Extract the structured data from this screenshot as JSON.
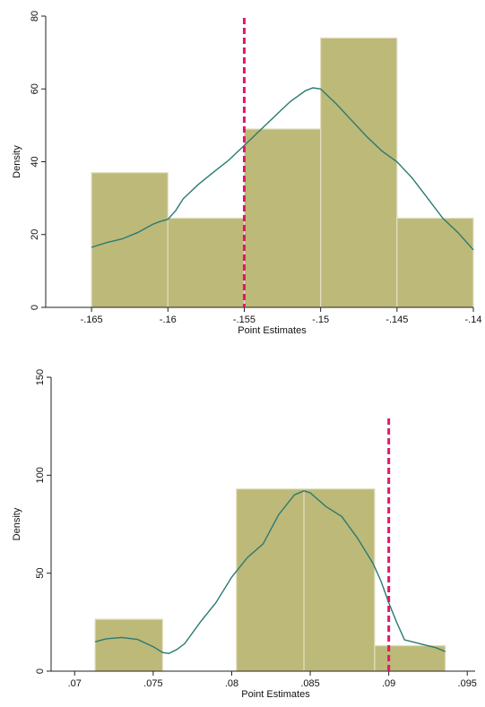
{
  "chart_data": [
    {
      "type": "bar",
      "subtype": "histogram-with-kernel-density",
      "xlabel": "Point Estimates",
      "ylabel": "Density",
      "xlim": [
        -0.168,
        -0.14
      ],
      "ylim": [
        0,
        80
      ],
      "xticks": [
        {
          "value": -0.165,
          "label": "-.165"
        },
        {
          "value": -0.16,
          "label": "-.16"
        },
        {
          "value": -0.155,
          "label": "-.155"
        },
        {
          "value": -0.15,
          "label": "-.15"
        },
        {
          "value": -0.145,
          "label": "-.145"
        },
        {
          "value": -0.14,
          "label": "-.14"
        }
      ],
      "yticks": [
        {
          "value": 0,
          "label": "0"
        },
        {
          "value": 20,
          "label": "20"
        },
        {
          "value": 40,
          "label": "40"
        },
        {
          "value": 60,
          "label": "60"
        },
        {
          "value": 80,
          "label": "80"
        }
      ],
      "bins": [
        {
          "x0": -0.165,
          "x1": -0.16,
          "value": 37
        },
        {
          "x0": -0.16,
          "x1": -0.155,
          "value": 24.5
        },
        {
          "x0": -0.155,
          "x1": -0.15,
          "value": 49
        },
        {
          "x0": -0.15,
          "x1": -0.145,
          "value": 74
        },
        {
          "x0": -0.145,
          "x1": -0.14,
          "value": 24.5
        }
      ],
      "density": {
        "x": [
          -0.165,
          -0.164,
          -0.163,
          -0.162,
          -0.161,
          -0.1605,
          -0.16,
          -0.1595,
          -0.159,
          -0.158,
          -0.157,
          -0.156,
          -0.155,
          -0.154,
          -0.153,
          -0.152,
          -0.151,
          -0.1505,
          -0.15,
          -0.149,
          -0.148,
          -0.147,
          -0.146,
          -0.145,
          -0.144,
          -0.143,
          -0.142,
          -0.141,
          -0.14
        ],
        "y": [
          16.5,
          17.8,
          18.8,
          20.5,
          22.8,
          23.6,
          24.2,
          26.5,
          29.8,
          33.8,
          37.2,
          40.5,
          44.5,
          48.5,
          52.5,
          56.5,
          59.5,
          60.3,
          60.0,
          56.0,
          51.5,
          47.0,
          43.0,
          40.0,
          35.5,
          30.0,
          24.5,
          20.5,
          15.8
        ]
      },
      "reference_line": -0.155,
      "colors": {
        "bars": "#bdb978",
        "bar_edge": "#e2dfc2",
        "density": "#2a7a73",
        "reference": "#e0186b"
      }
    },
    {
      "type": "bar",
      "subtype": "histogram-with-kernel-density",
      "xlabel": "Point Estimates",
      "ylabel": "Density",
      "xlim": [
        0.0685,
        0.0955
      ],
      "ylim": [
        0,
        150
      ],
      "xticks": [
        {
          "value": 0.07,
          "label": ".07"
        },
        {
          "value": 0.075,
          "label": ".075"
        },
        {
          "value": 0.08,
          "label": ".08"
        },
        {
          "value": 0.085,
          "label": ".085"
        },
        {
          "value": 0.09,
          "label": ".09"
        },
        {
          "value": 0.095,
          "label": ".095"
        }
      ],
      "yticks": [
        {
          "value": 0,
          "label": "0"
        },
        {
          "value": 50,
          "label": "50"
        },
        {
          "value": 100,
          "label": "100"
        },
        {
          "value": 150,
          "label": "150"
        }
      ],
      "bins": [
        {
          "x0": 0.0713,
          "x1": 0.0756,
          "value": 26.5
        },
        {
          "x0": 0.0756,
          "x1": 0.0803,
          "value": 0
        },
        {
          "x0": 0.0803,
          "x1": 0.0846,
          "value": 93
        },
        {
          "x0": 0.0846,
          "x1": 0.0891,
          "value": 93
        },
        {
          "x0": 0.0891,
          "x1": 0.0936,
          "value": 13
        }
      ],
      "density": {
        "x": [
          0.0713,
          0.072,
          0.073,
          0.074,
          0.075,
          0.0756,
          0.076,
          0.0765,
          0.077,
          0.078,
          0.079,
          0.08,
          0.081,
          0.082,
          0.083,
          0.084,
          0.0846,
          0.085,
          0.086,
          0.087,
          0.088,
          0.089,
          0.0895,
          0.09,
          0.0905,
          0.091,
          0.092,
          0.093,
          0.0936
        ],
        "y": [
          15,
          16.5,
          17.2,
          16.2,
          12.5,
          9.5,
          9.0,
          11,
          14,
          25,
          35,
          48,
          58,
          65,
          80,
          90,
          92,
          91,
          84,
          79,
          68,
          55,
          46,
          35,
          25,
          16,
          14,
          12,
          10
        ]
      },
      "reference_line": 0.09,
      "colors": {
        "bars": "#bdb978",
        "bar_edge": "#e2dfc2",
        "density": "#2a7a73",
        "reference": "#e0186b"
      }
    }
  ]
}
